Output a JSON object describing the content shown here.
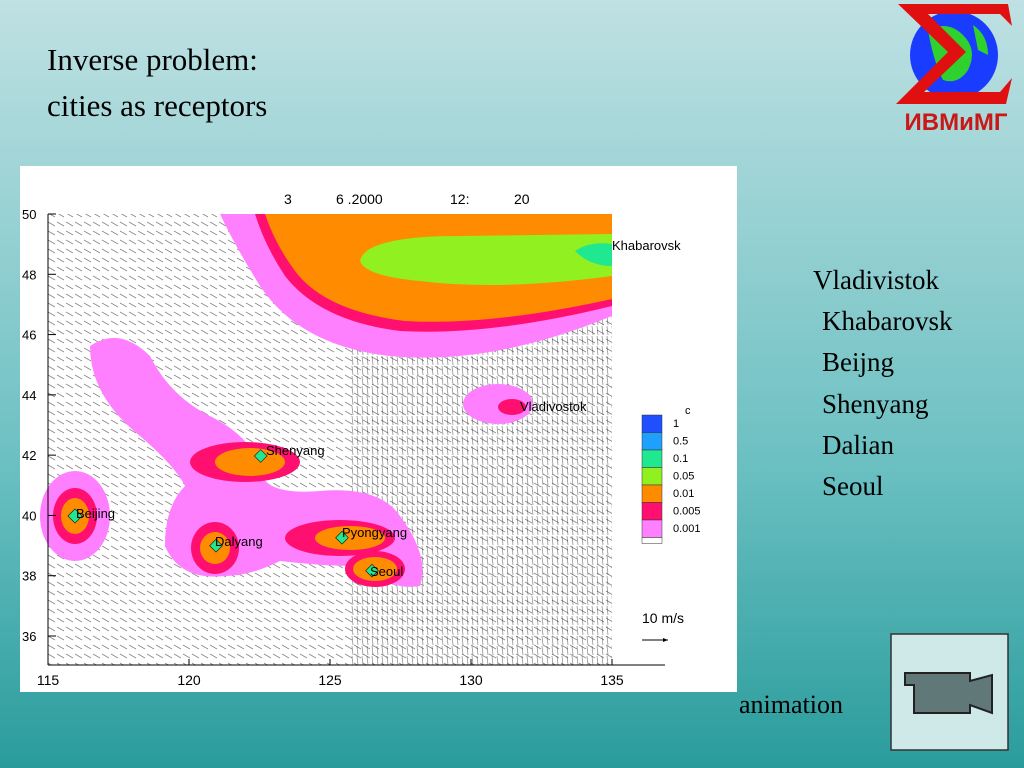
{
  "title": {
    "line1": "Inverse problem:",
    "line2": "cities as receptors"
  },
  "logo": {
    "text": "ИВМиМГ"
  },
  "plot": {
    "header": [
      "3",
      "6 .2000",
      "12:",
      "20"
    ],
    "xticks": [
      115,
      120,
      125,
      130,
      135
    ],
    "yticks": [
      36,
      38,
      40,
      42,
      44,
      46,
      48,
      50
    ],
    "cities": [
      "Khabarovsk",
      "Vladivostok",
      "Shenyang",
      "Beijing",
      "Dalyang",
      "Pyongyang",
      "Seoul"
    ],
    "legend": {
      "title": "c",
      "labels": [
        1,
        0.5,
        0.1,
        0.05,
        0.01,
        0.005,
        0.001
      ]
    },
    "scale": "10 m/s"
  },
  "receptors": [
    "Vladivistok",
    "Khabarovsk",
    "Beijng",
    "Shenyang",
    "Dalian",
    "Seoul"
  ],
  "animation": "animation"
}
